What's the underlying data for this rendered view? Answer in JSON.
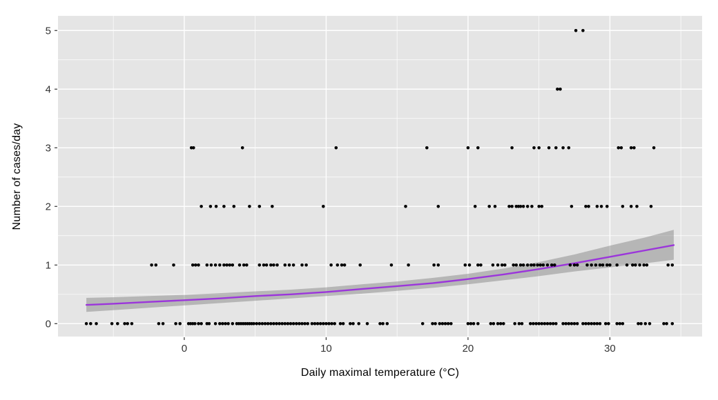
{
  "chart_data": {
    "type": "scatter",
    "title": "",
    "xlabel": "Daily maximal temperature (°C)",
    "ylabel": "Number of cases/day",
    "xlim": [
      -8.9,
      36.5
    ],
    "ylim": [
      -0.22,
      5.25
    ],
    "x_major_ticks": [
      0,
      10,
      20,
      30
    ],
    "x_minor_ticks": [
      -5,
      5,
      15,
      25,
      35
    ],
    "y_major_ticks": [
      0,
      1,
      2,
      3,
      4,
      5
    ],
    "y_minor_ticks": [
      0.5,
      1.5,
      2.5,
      3.5,
      4.5
    ],
    "grid": "on",
    "legend": "none",
    "colors": {
      "panel_bg": "#E5E5E5",
      "grid_major": "#FFFFFF",
      "grid_minor": "#FFFFFF",
      "point": "#000000",
      "smooth_line": "#9B35DB",
      "ribbon": "rgba(125,125,125,0.45)",
      "tick_mark": "#333333",
      "tick_label": "#333333"
    },
    "points_by_count": {
      "0": [
        -6.9,
        -6.6,
        -6.2,
        -5.1,
        -4.7,
        -4.2,
        -4.0,
        -3.7,
        -1.8,
        -1.5,
        -0.6,
        -0.3,
        0.3,
        0.45,
        0.6,
        0.75,
        1.0,
        1.2,
        1.6,
        1.75,
        2.2,
        2.5,
        2.7,
        2.9,
        3.1,
        3.4,
        3.7,
        3.85,
        4.0,
        4.15,
        4.3,
        4.45,
        4.6,
        4.75,
        4.9,
        5.1,
        5.3,
        5.5,
        5.7,
        5.9,
        6.1,
        6.3,
        6.5,
        6.7,
        6.9,
        7.1,
        7.3,
        7.5,
        7.7,
        7.9,
        8.1,
        8.3,
        8.5,
        8.7,
        9.0,
        9.2,
        9.4,
        9.6,
        9.8,
        10.0,
        10.2,
        10.4,
        10.6,
        11.0,
        11.2,
        11.7,
        11.9,
        12.3,
        12.9,
        13.8,
        14.0,
        14.3,
        16.8,
        17.5,
        17.7,
        18.0,
        18.2,
        18.4,
        18.6,
        18.8,
        20.0,
        20.2,
        20.4,
        20.7,
        21.6,
        21.8,
        22.1,
        22.3,
        22.5,
        23.3,
        23.6,
        23.8,
        24.4,
        24.6,
        24.8,
        25.0,
        25.2,
        25.4,
        25.6,
        25.8,
        26.0,
        26.2,
        26.7,
        26.9,
        27.1,
        27.3,
        27.5,
        27.7,
        28.1,
        28.3,
        28.5,
        28.7,
        28.9,
        29.1,
        29.3,
        29.7,
        29.9,
        30.5,
        30.7,
        30.9,
        32.0,
        32.2,
        32.5,
        32.8,
        33.8,
        34.0,
        34.4
      ],
      "1": [
        -2.3,
        -2.0,
        -0.75,
        0.6,
        0.8,
        1.0,
        1.6,
        1.9,
        2.2,
        2.5,
        2.8,
        3.0,
        3.2,
        3.4,
        3.9,
        4.2,
        4.4,
        5.3,
        5.6,
        5.8,
        6.1,
        6.3,
        6.55,
        7.1,
        7.4,
        7.7,
        8.3,
        8.6,
        10.35,
        10.8,
        11.1,
        11.3,
        12.4,
        14.6,
        15.8,
        17.6,
        17.9,
        19.8,
        20.1,
        20.7,
        20.9,
        21.75,
        22.1,
        22.4,
        22.6,
        23.2,
        23.4,
        23.7,
        23.9,
        24.2,
        24.45,
        24.65,
        24.9,
        25.1,
        25.3,
        25.6,
        25.9,
        26.1,
        27.2,
        27.5,
        27.7,
        28.4,
        28.7,
        29.0,
        29.3,
        29.5,
        29.8,
        30.0,
        30.5,
        31.2,
        31.6,
        31.8,
        32.1,
        32.4,
        32.6,
        34.1,
        34.4
      ],
      "2": [
        1.2,
        1.85,
        2.25,
        2.8,
        3.5,
        4.6,
        5.3,
        6.2,
        9.8,
        15.6,
        17.9,
        20.5,
        21.5,
        21.9,
        22.9,
        23.1,
        23.4,
        23.55,
        23.7,
        23.9,
        24.2,
        24.5,
        25.0,
        25.2,
        27.3,
        28.3,
        28.5,
        29.1,
        29.4,
        29.8,
        30.9,
        31.5,
        31.9,
        32.9
      ],
      "3": [
        0.5,
        0.65,
        4.1,
        10.7,
        17.1,
        20.0,
        20.7,
        23.1,
        24.65,
        25.0,
        25.7,
        26.2,
        26.7,
        27.1,
        30.6,
        30.8,
        31.5,
        31.7,
        33.1
      ],
      "4": [
        26.3,
        26.5
      ],
      "5": [
        27.6,
        28.1
      ]
    },
    "smooth": {
      "x": [
        -6.9,
        -5.0,
        -2.5,
        0.0,
        2.5,
        5.0,
        7.5,
        10.0,
        12.5,
        15.0,
        17.5,
        20.0,
        22.5,
        25.0,
        27.5,
        30.0,
        32.5,
        34.5
      ],
      "fit": [
        0.32,
        0.34,
        0.37,
        0.4,
        0.43,
        0.47,
        0.5,
        0.54,
        0.59,
        0.64,
        0.69,
        0.76,
        0.84,
        0.93,
        1.03,
        1.14,
        1.25,
        1.34
      ],
      "lower": [
        0.2,
        0.23,
        0.27,
        0.31,
        0.35,
        0.39,
        0.43,
        0.47,
        0.51,
        0.56,
        0.61,
        0.67,
        0.74,
        0.81,
        0.89,
        0.96,
        1.03,
        1.09
      ],
      "upper": [
        0.44,
        0.45,
        0.47,
        0.49,
        0.52,
        0.55,
        0.58,
        0.62,
        0.67,
        0.72,
        0.78,
        0.85,
        0.94,
        1.05,
        1.18,
        1.33,
        1.47,
        1.6
      ]
    }
  }
}
